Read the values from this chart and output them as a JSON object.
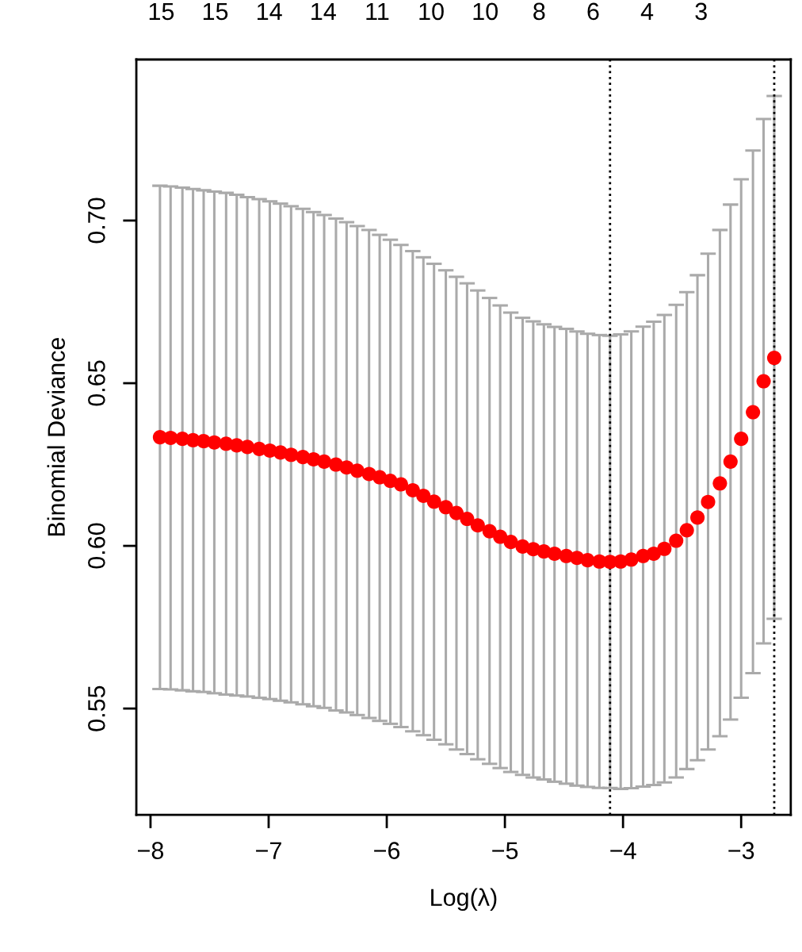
{
  "chart_data": {
    "type": "scatter",
    "xlabel": "Log(λ)",
    "ylabel": "Binomial Deviance",
    "xlim": [
      -8.12,
      -2.58
    ],
    "ylim": [
      0.5173,
      0.7495
    ],
    "xticks": [
      {
        "value": -8,
        "label": "−8"
      },
      {
        "value": -7,
        "label": "−7"
      },
      {
        "value": -6,
        "label": "−6"
      },
      {
        "value": -5,
        "label": "−5"
      },
      {
        "value": -4,
        "label": "−4"
      },
      {
        "value": -3,
        "label": "−3"
      }
    ],
    "yticks": [
      0.55,
      {
        "value": 0.6,
        "label": "0.60"
      },
      0.65,
      {
        "value": 0.7,
        "label": "0.70"
      }
    ],
    "annotations": [
      "15",
      "15",
      "14",
      "14",
      "11",
      "10",
      "10",
      "8",
      "6",
      "4",
      "3"
    ],
    "x": [
      -7.92,
      -7.83,
      -7.73,
      -7.64,
      -7.55,
      -7.46,
      -7.36,
      -7.27,
      -7.18,
      -7.08,
      -6.99,
      -6.9,
      -6.81,
      -6.71,
      -6.62,
      -6.53,
      -6.43,
      -6.34,
      -6.25,
      -6.15,
      -6.06,
      -5.97,
      -5.88,
      -5.78,
      -5.69,
      -5.6,
      -5.5,
      -5.41,
      -5.32,
      -5.23,
      -5.13,
      -5.04,
      -4.95,
      -4.85,
      -4.76,
      -4.67,
      -4.58,
      -4.48,
      -4.39,
      -4.3,
      -4.2,
      -4.11,
      -4.02,
      -3.93,
      -3.83,
      -3.74,
      -3.65,
      -3.55,
      -3.46,
      -3.37,
      -3.28,
      -3.18,
      -3.09,
      -3.0,
      -2.9,
      -2.81,
      -2.72
    ],
    "series": [
      {
        "color": "#ff0000",
        "marker": "circle",
        "values": [
          0.6334,
          0.6332,
          0.6329,
          0.6325,
          0.6322,
          0.6318,
          0.6314,
          0.6309,
          0.6304,
          0.6298,
          0.6293,
          0.6287,
          0.628,
          0.6273,
          0.6266,
          0.6259,
          0.625,
          0.6241,
          0.6231,
          0.6221,
          0.6211,
          0.62,
          0.6189,
          0.6171,
          0.6154,
          0.6136,
          0.6119,
          0.6101,
          0.6083,
          0.6063,
          0.6045,
          0.6028,
          0.6012,
          0.5998,
          0.599,
          0.5983,
          0.5976,
          0.5969,
          0.5963,
          0.5956,
          0.5952,
          0.5951,
          0.5952,
          0.5958,
          0.5969,
          0.5976,
          0.5991,
          0.6016,
          0.6048,
          0.6087,
          0.6135,
          0.6192,
          0.6259,
          0.6329,
          0.6411,
          0.6506,
          0.6578
        ],
        "errors": [
          [
            0.556,
            0.7107
          ],
          [
            0.5559,
            0.7105
          ],
          [
            0.5556,
            0.7101
          ],
          [
            0.5553,
            0.7097
          ],
          [
            0.5551,
            0.7093
          ],
          [
            0.5547,
            0.7089
          ],
          [
            0.5543,
            0.7085
          ],
          [
            0.554,
            0.7079
          ],
          [
            0.5537,
            0.7072
          ],
          [
            0.5533,
            0.7066
          ],
          [
            0.5529,
            0.7059
          ],
          [
            0.5524,
            0.7052
          ],
          [
            0.5519,
            0.7044
          ],
          [
            0.5513,
            0.7036
          ],
          [
            0.5507,
            0.7026
          ],
          [
            0.5502,
            0.7017
          ],
          [
            0.5494,
            0.7006
          ],
          [
            0.5488,
            0.6995
          ],
          [
            0.548,
            0.6983
          ],
          [
            0.5471,
            0.6971
          ],
          [
            0.5462,
            0.6956
          ],
          [
            0.5453,
            0.6941
          ],
          [
            0.5443,
            0.6925
          ],
          [
            0.543,
            0.6906
          ],
          [
            0.5418,
            0.6887
          ],
          [
            0.5404,
            0.6867
          ],
          [
            0.539,
            0.6847
          ],
          [
            0.5374,
            0.6827
          ],
          [
            0.536,
            0.6807
          ],
          [
            0.5344,
            0.6785
          ],
          [
            0.533,
            0.6762
          ],
          [
            0.5317,
            0.6739
          ],
          [
            0.5305,
            0.6717
          ],
          [
            0.5296,
            0.6701
          ],
          [
            0.5288,
            0.669
          ],
          [
            0.5282,
            0.6681
          ],
          [
            0.5275,
            0.6673
          ],
          [
            0.5269,
            0.6667
          ],
          [
            0.5263,
            0.6659
          ],
          [
            0.5259,
            0.6652
          ],
          [
            0.5256,
            0.6648
          ],
          [
            0.5256,
            0.6646
          ],
          [
            0.5253,
            0.665
          ],
          [
            0.5255,
            0.6659
          ],
          [
            0.526,
            0.6674
          ],
          [
            0.5265,
            0.6689
          ],
          [
            0.5273,
            0.671
          ],
          [
            0.5288,
            0.6741
          ],
          [
            0.5314,
            0.678
          ],
          [
            0.5341,
            0.6832
          ],
          [
            0.5374,
            0.6898
          ],
          [
            0.5415,
            0.6971
          ],
          [
            0.5466,
            0.7049
          ],
          [
            0.5533,
            0.7127
          ],
          [
            0.5609,
            0.7215
          ],
          [
            0.57,
            0.7312
          ],
          [
            0.5776,
            0.7383
          ]
        ]
      }
    ],
    "ref_lines": [
      {
        "axis": "x",
        "value": -4.11,
        "color": "#000000",
        "line_style": "dotted"
      },
      {
        "axis": "x",
        "value": -2.72,
        "color": "#000000",
        "line_style": "dotted"
      }
    ],
    "grid": false
  }
}
